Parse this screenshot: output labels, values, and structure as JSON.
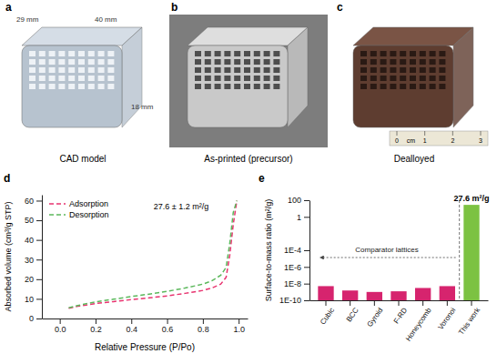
{
  "panels": [
    {
      "panel_label": "a",
      "caption": "CAD model",
      "dimensions": [
        "29 mm",
        "40 mm",
        "18 mm"
      ]
    },
    {
      "panel_label": "b",
      "caption": "As-printed (precursor)"
    },
    {
      "panel_label": "c",
      "caption": "Dealloyed",
      "ruler": {
        "unit": "cm",
        "ticks": [
          0,
          1,
          2,
          3
        ]
      }
    }
  ],
  "chart_data": [
    {
      "panel_label": "d",
      "type": "line",
      "x_label": "Relative Pressure (P/Po)",
      "y_label": "Absorbed volume (cm³/g STP)",
      "x": [
        0.05,
        0.1,
        0.2,
        0.3,
        0.4,
        0.5,
        0.6,
        0.7,
        0.8,
        0.85,
        0.9,
        0.93,
        0.95,
        0.97,
        0.99
      ],
      "series": [
        {
          "name": "Adsorption",
          "color": "#e8336f",
          "line_style": "dashed",
          "values": [
            5.2,
            6.2,
            7.6,
            8.6,
            9.6,
            10.5,
            11.5,
            12.8,
            14.3,
            15.5,
            17.5,
            21,
            32,
            48,
            60
          ]
        },
        {
          "name": "Desorption",
          "color": "#5cb85c",
          "line_style": "dashed",
          "values": [
            5.4,
            6.6,
            8.5,
            9.8,
            11.2,
            12.4,
            13.8,
            15.5,
            17.5,
            19.2,
            22,
            26,
            38,
            54,
            60
          ]
        }
      ],
      "xlim": [
        -0.1,
        1.05
      ],
      "xticks": [
        {
          "value": 0,
          "label": "0.0"
        },
        {
          "value": 0.2,
          "label": "0.2"
        },
        {
          "value": 0.4,
          "label": "0.4"
        },
        {
          "value": 0.6,
          "label": "0.6"
        },
        {
          "value": 0.8,
          "label": "0.8"
        },
        {
          "value": 1,
          "label": "1.0"
        }
      ],
      "ylim": [
        0,
        63
      ],
      "yticks": [
        0,
        10,
        20,
        30,
        40,
        50,
        60
      ],
      "legend": "top-left",
      "annotations": [
        {
          "text": "27.6 ± 1.2 m²/g"
        }
      ]
    },
    {
      "panel_label": "e",
      "type": "bar",
      "y_label": "Surface-to-mass ratio (m²/g)",
      "categories": [
        "Cubic",
        "BCC",
        "Gyroid",
        "F-RD",
        "Honeycomb",
        "Voronoi",
        "This work"
      ],
      "values": [
        5e-09,
        1.5e-09,
        1e-09,
        1.2e-09,
        3e-09,
        5e-09,
        27.6
      ],
      "colors": [
        "#d6246e",
        "#d6246e",
        "#d6246e",
        "#d6246e",
        "#d6246e",
        "#d6246e",
        "#7cc242"
      ],
      "log": "y",
      "ylim": [
        1e-10,
        100
      ],
      "yticks": [
        100,
        1,
        {
          "value": 0.0001,
          "label": "1E-4"
        },
        {
          "value": 1e-06,
          "label": "1E-6"
        },
        {
          "value": 1e-08,
          "label": "1E-8"
        },
        {
          "value": 1e-10,
          "label": "1E-10"
        }
      ],
      "annotations": [
        {
          "text": "27.6 m²/g"
        },
        {
          "text": "Comparator lattices"
        }
      ]
    }
  ]
}
